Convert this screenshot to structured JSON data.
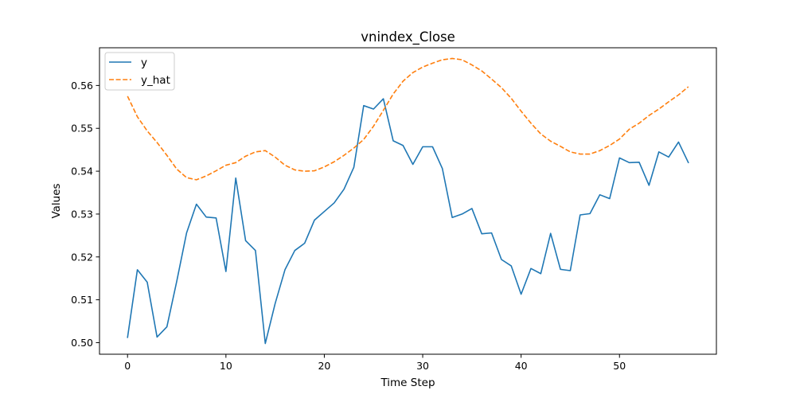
{
  "chart_data": {
    "type": "line",
    "title": "vnindex_Close",
    "xlabel": "Time Step",
    "ylabel": "Values",
    "xlim": [
      -2.85,
      59.85
    ],
    "ylim": [
      0.4973,
      0.5688
    ],
    "xticks": [
      0,
      10,
      20,
      30,
      40,
      50
    ],
    "yticks": [
      0.5,
      0.51,
      0.52,
      0.53,
      0.54,
      0.55,
      0.56
    ],
    "ytick_labels": [
      "0.50",
      "0.51",
      "0.52",
      "0.53",
      "0.54",
      "0.55",
      "0.56"
    ],
    "grid": false,
    "legend": "upper-left",
    "series": [
      {
        "name": "y",
        "color": "#1f77b4",
        "style": "solid",
        "x": [
          0,
          1,
          2,
          3,
          4,
          5,
          6,
          7,
          8,
          9,
          10,
          11,
          12,
          13,
          14,
          15,
          16,
          17,
          18,
          19,
          20,
          21,
          22,
          23,
          24,
          25,
          26,
          27,
          28,
          29,
          30,
          31,
          32,
          33,
          34,
          35,
          36,
          37,
          38,
          39,
          40,
          41,
          42,
          43,
          44,
          45,
          46,
          47,
          48,
          49,
          50,
          51,
          52,
          53,
          54,
          55,
          56,
          57
        ],
        "values": [
          0.5012,
          0.517,
          0.5141,
          0.5013,
          0.5037,
          0.5143,
          0.5256,
          0.5323,
          0.5293,
          0.5291,
          0.5166,
          0.5384,
          0.5238,
          0.5215,
          0.4998,
          0.5091,
          0.517,
          0.5215,
          0.5232,
          0.5286,
          0.5306,
          0.5326,
          0.5358,
          0.5409,
          0.5553,
          0.5545,
          0.5569,
          0.5471,
          0.546,
          0.5416,
          0.5457,
          0.5457,
          0.5406,
          0.5292,
          0.53,
          0.5313,
          0.5254,
          0.5256,
          0.5194,
          0.5179,
          0.5113,
          0.5173,
          0.5161,
          0.5255,
          0.5171,
          0.5168,
          0.5298,
          0.5301,
          0.5345,
          0.5336,
          0.5431,
          0.542,
          0.5421,
          0.5367,
          0.5445,
          0.5433,
          0.5468,
          0.542
        ]
      },
      {
        "name": "y_hat",
        "color": "#ff7f0e",
        "style": "dashed",
        "x": [
          0,
          1,
          2,
          3,
          4,
          5,
          6,
          7,
          8,
          9,
          10,
          11,
          12,
          13,
          14,
          15,
          16,
          17,
          18,
          19,
          20,
          21,
          22,
          23,
          24,
          25,
          26,
          27,
          28,
          29,
          30,
          31,
          32,
          33,
          34,
          35,
          36,
          37,
          38,
          39,
          40,
          41,
          42,
          43,
          44,
          45,
          46,
          47,
          48,
          49,
          50,
          51,
          52,
          53,
          54,
          55,
          56,
          57
        ],
        "values": [
          0.5575,
          0.5527,
          0.5494,
          0.5467,
          0.5437,
          0.5405,
          0.5385,
          0.538,
          0.5389,
          0.5401,
          0.5414,
          0.542,
          0.5435,
          0.5445,
          0.5448,
          0.5433,
          0.5414,
          0.5403,
          0.54,
          0.5401,
          0.541,
          0.5422,
          0.5437,
          0.5454,
          0.5474,
          0.5505,
          0.5542,
          0.558,
          0.561,
          0.563,
          0.5643,
          0.5652,
          0.566,
          0.5663,
          0.566,
          0.5648,
          0.5634,
          0.5615,
          0.5595,
          0.557,
          0.554,
          0.5512,
          0.5487,
          0.547,
          0.5458,
          0.5445,
          0.544,
          0.544,
          0.5448,
          0.546,
          0.5475,
          0.5498,
          0.5512,
          0.553,
          0.5545,
          0.5562,
          0.5578,
          0.5597
        ]
      }
    ]
  }
}
